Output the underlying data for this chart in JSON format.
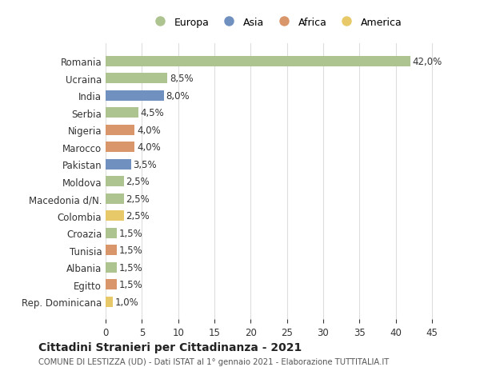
{
  "countries": [
    "Romania",
    "Ucraina",
    "India",
    "Serbia",
    "Nigeria",
    "Marocco",
    "Pakistan",
    "Moldova",
    "Macedonia d/N.",
    "Colombia",
    "Croazia",
    "Tunisia",
    "Albania",
    "Egitto",
    "Rep. Dominicana"
  ],
  "values": [
    42.0,
    8.5,
    8.0,
    4.5,
    4.0,
    4.0,
    3.5,
    2.5,
    2.5,
    2.5,
    1.5,
    1.5,
    1.5,
    1.5,
    1.0
  ],
  "labels": [
    "42,0%",
    "8,5%",
    "8,0%",
    "4,5%",
    "4,0%",
    "4,0%",
    "3,5%",
    "2,5%",
    "2,5%",
    "2,5%",
    "1,5%",
    "1,5%",
    "1,5%",
    "1,5%",
    "1,0%"
  ],
  "colors": [
    "#adc490",
    "#adc490",
    "#7090c0",
    "#adc490",
    "#d9966a",
    "#d9966a",
    "#7090c0",
    "#adc490",
    "#adc490",
    "#e8c96a",
    "#adc490",
    "#d9966a",
    "#adc490",
    "#d9966a",
    "#e8c96a"
  ],
  "legend_labels": [
    "Europa",
    "Asia",
    "Africa",
    "America"
  ],
  "legend_colors": [
    "#adc490",
    "#7090c0",
    "#d9966a",
    "#e8c96a"
  ],
  "xlim": [
    0,
    47
  ],
  "xticks": [
    0,
    5,
    10,
    15,
    20,
    25,
    30,
    35,
    40,
    45
  ],
  "title": "Cittadini Stranieri per Cittadinanza - 2021",
  "subtitle": "COMUNE DI LESTIZZA (UD) - Dati ISTAT al 1° gennaio 2021 - Elaborazione TUTTITALIA.IT",
  "bg_color": "#ffffff",
  "grid_color": "#dddddd",
  "bar_height": 0.6
}
